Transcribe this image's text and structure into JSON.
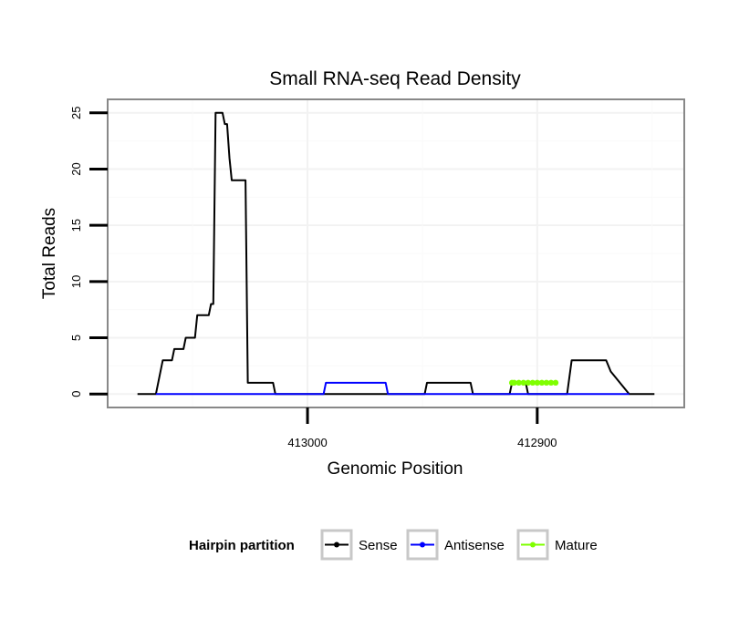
{
  "chart_data": {
    "type": "line",
    "title": "Small RNA-seq Read Density",
    "xlabel": "Genomic Position",
    "ylabel": "Total Reads",
    "x_reversed": true,
    "xlim": [
      413087,
      412836
    ],
    "ylim": [
      -1.2,
      26.2
    ],
    "x_ticks": [
      413000,
      412900
    ],
    "x_tick_labels": [
      "413000",
      "412900"
    ],
    "y_ticks": [
      0,
      5,
      10,
      15,
      20,
      25
    ],
    "y_tick_labels": [
      "0",
      "5",
      "10",
      "15",
      "20",
      "25"
    ],
    "grid": true,
    "legend": {
      "title": "Hairpin partition",
      "placement": "bottom",
      "entries": [
        "Sense",
        "Antisense",
        "Mature"
      ]
    },
    "series": [
      {
        "name": "Sense",
        "color": "#000000",
        "x": [
          413074,
          413066,
          413063,
          413059,
          413058,
          413054,
          413053,
          413049,
          413048,
          413047,
          413046,
          413043,
          413042,
          413041,
          413040,
          413037,
          413036,
          413035,
          413034,
          413033,
          413027,
          413026,
          413015,
          413014,
          412949,
          412948,
          412929,
          412928,
          412912,
          412911,
          412905,
          412904,
          412887,
          412885,
          412879,
          412877,
          412870,
          412868,
          412860,
          412849
        ],
        "y": [
          0,
          0,
          3,
          3,
          4,
          4,
          5,
          5,
          7,
          7,
          7,
          7,
          8,
          8,
          25,
          25,
          24,
          24,
          21,
          19,
          19,
          1,
          1,
          0,
          0,
          1,
          1,
          0,
          0,
          1,
          1,
          0,
          0,
          3,
          3,
          3,
          3,
          2,
          0,
          0
        ]
      },
      {
        "name": "Antisense",
        "color": "#0000ff",
        "x": [
          413066,
          413027,
          413026,
          413020,
          413019,
          412993,
          412992,
          412966,
          412965,
          412947,
          412946,
          412929,
          412928,
          412900,
          412899,
          412868,
          412867,
          412860
        ],
        "y": [
          0,
          0,
          0,
          0,
          0,
          0,
          1,
          1,
          0,
          0,
          0,
          0,
          0,
          0,
          0,
          0,
          0,
          0
        ]
      },
      {
        "name": "Mature",
        "color": "#7fff00",
        "x": [
          412911,
          412910,
          412908,
          412906,
          412904,
          412902,
          412900,
          412898,
          412896,
          412894,
          412892
        ],
        "y": [
          1,
          1,
          1,
          1,
          1,
          1,
          1,
          1,
          1,
          1,
          1
        ]
      }
    ]
  }
}
